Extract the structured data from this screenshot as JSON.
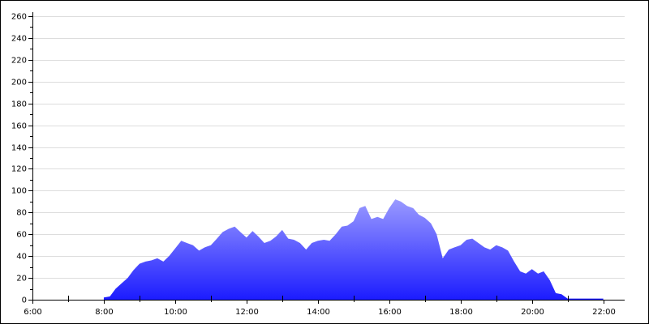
{
  "chart_data": {
    "type": "area",
    "x": [
      8,
      8.17,
      8.33,
      8.5,
      8.67,
      8.83,
      9,
      9.17,
      9.33,
      9.5,
      9.67,
      9.83,
      10,
      10.17,
      10.33,
      10.5,
      10.67,
      10.83,
      11,
      11.17,
      11.33,
      11.5,
      11.67,
      11.83,
      12,
      12.17,
      12.33,
      12.5,
      12.67,
      12.83,
      13,
      13.17,
      13.33,
      13.5,
      13.67,
      13.83,
      14,
      14.17,
      14.33,
      14.5,
      14.67,
      14.83,
      15,
      15.17,
      15.33,
      15.5,
      15.67,
      15.83,
      16,
      16.17,
      16.33,
      16.5,
      16.67,
      16.83,
      17,
      17.17,
      17.33,
      17.5,
      17.67,
      17.83,
      18,
      18.17,
      18.33,
      18.5,
      18.67,
      18.83,
      19,
      19.17,
      19.33,
      19.5,
      19.67,
      19.83,
      20,
      20.17,
      20.33,
      20.5,
      20.67,
      20.83,
      21,
      21.17,
      21.33,
      21.5,
      21.67,
      21.83,
      22
    ],
    "values": [
      2,
      3,
      10,
      15,
      20,
      27,
      33,
      35,
      36,
      38,
      35,
      40,
      47,
      54,
      52,
      50,
      45,
      48,
      50,
      56,
      62,
      65,
      67,
      62,
      57,
      63,
      58,
      52,
      54,
      58,
      64,
      56,
      55,
      52,
      46,
      52,
      54,
      55,
      54,
      60,
      67,
      68,
      72,
      84,
      86,
      74,
      76,
      74,
      84,
      92,
      90,
      86,
      84,
      78,
      75,
      70,
      60,
      38,
      46,
      48,
      50,
      55,
      56,
      52,
      48,
      46,
      50,
      48,
      45,
      35,
      26,
      24,
      28,
      24,
      26,
      18,
      6,
      5,
      1,
      1,
      1,
      1,
      1,
      1,
      1
    ],
    "gradient": [
      "#9a9aff",
      "#1c1cff"
    ],
    "xlim": [
      6,
      22.6
    ],
    "xticks": [
      {
        "value": 6,
        "label": "6:00"
      },
      {
        "value": 8,
        "label": "8:00"
      },
      {
        "value": 10,
        "label": "10:00"
      },
      {
        "value": 12,
        "label": "12:00"
      },
      {
        "value": 14,
        "label": "14:00"
      },
      {
        "value": 16,
        "label": "16:00"
      },
      {
        "value": 18,
        "label": "18:00"
      },
      {
        "value": 20,
        "label": "20:00"
      },
      {
        "value": 22,
        "label": "22:00"
      }
    ],
    "xminorticks": [
      7,
      9,
      11,
      13,
      15,
      17,
      19,
      21
    ],
    "ylim": [
      0,
      260
    ],
    "yticks": [
      0,
      20,
      40,
      60,
      80,
      100,
      120,
      140,
      160,
      180,
      200,
      220,
      240,
      260
    ],
    "yminorticks": [
      10,
      30,
      50,
      70,
      90,
      110,
      130,
      150,
      170,
      190,
      210,
      230,
      250
    ],
    "grid": true
  }
}
